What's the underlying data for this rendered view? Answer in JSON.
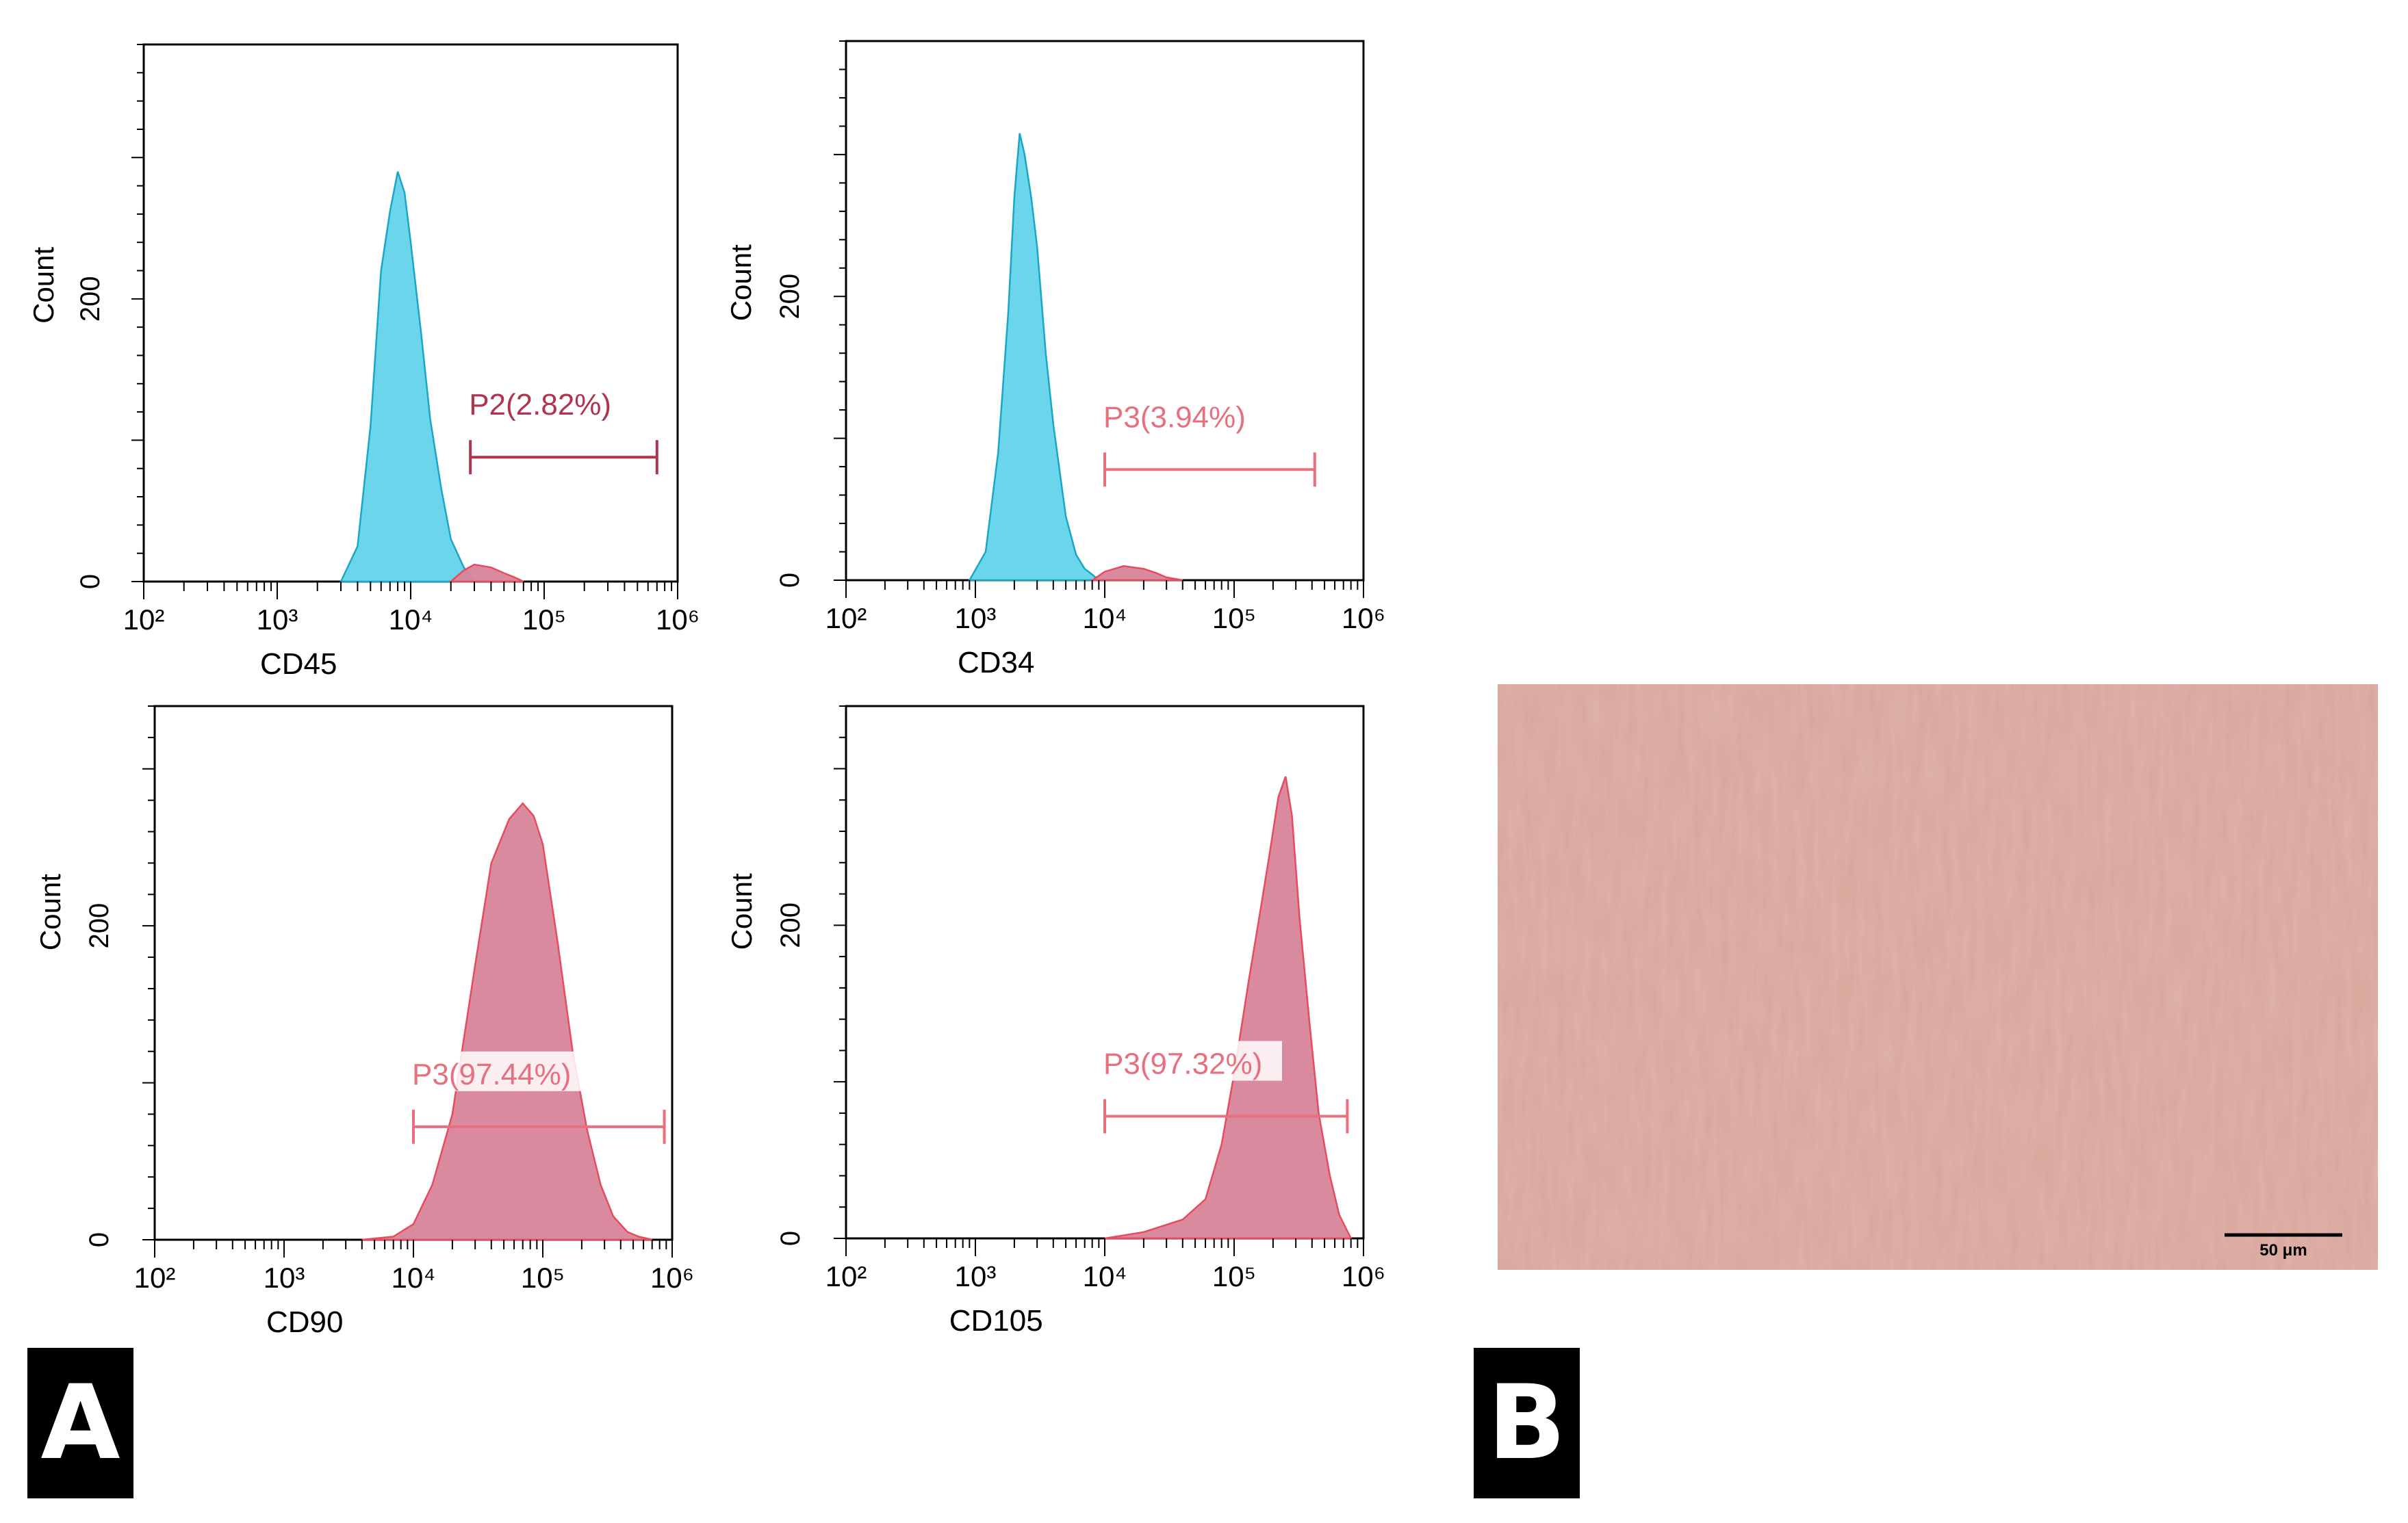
{
  "chart_data": [
    {
      "type": "area",
      "xlabel": "CD45",
      "ylabel": "Count",
      "x_scale": "log",
      "xlim": [
        100,
        1000000
      ],
      "ylim": [
        0,
        380
      ],
      "x_tick_labels": [
        "10²",
        "10³",
        "10⁴",
        "10⁵",
        "10⁶"
      ],
      "y_tick_labels": [
        "0",
        "200"
      ],
      "y_ticks": [
        0,
        200
      ],
      "series": [
        {
          "color": "#5bcfe8",
          "x": [
            3000,
            4000,
            5000,
            6000,
            7000,
            8000,
            9000,
            10000,
            12000,
            14000,
            17000,
            20000,
            25000,
            30000
          ],
          "values": [
            0,
            25,
            110,
            220,
            262,
            290,
            275,
            240,
            175,
            115,
            65,
            30,
            10,
            0
          ]
        },
        {
          "color": "#e8707e",
          "x": [
            20000,
            25000,
            30000,
            40000,
            50000,
            60000,
            70000
          ],
          "values": [
            0,
            8,
            12,
            10,
            6,
            3,
            0
          ]
        }
      ],
      "gate": {
        "label": "P2(2.82%)",
        "color": "#b0344e",
        "x_start": 28000,
        "x_end": 700000,
        "y": 88
      }
    },
    {
      "type": "area",
      "xlabel": "CD34",
      "ylabel": "Count",
      "x_scale": "log",
      "xlim": [
        100,
        1000000
      ],
      "ylim": [
        0,
        380
      ],
      "x_tick_labels": [
        "10²",
        "10³",
        "10⁴",
        "10⁵",
        "10⁶"
      ],
      "y_tick_labels": [
        "0",
        "200"
      ],
      "y_ticks": [
        0,
        200
      ],
      "series": [
        {
          "color": "#5bcfe8",
          "x": [
            900,
            1200,
            1500,
            1800,
            2000,
            2200,
            2400,
            2700,
            3000,
            3500,
            4000,
            5000,
            6000,
            7000,
            8000,
            9000
          ],
          "values": [
            0,
            20,
            90,
            190,
            270,
            315,
            300,
            270,
            235,
            160,
            110,
            45,
            18,
            8,
            4,
            0
          ]
        },
        {
          "color": "#e8707e",
          "x": [
            8000,
            10000,
            14000,
            20000,
            25000,
            30000,
            40000
          ],
          "values": [
            0,
            6,
            10,
            8,
            5,
            2,
            0
          ]
        }
      ],
      "gate": {
        "label": "P3(3.94%)",
        "color": "#e8707e",
        "x_start": 10000,
        "x_end": 420000,
        "y": 78
      }
    },
    {
      "type": "area",
      "xlabel": "CD90",
      "ylabel": "Count",
      "x_scale": "log",
      "xlim": [
        100,
        1000000
      ],
      "ylim": [
        0,
        340
      ],
      "x_tick_labels": [
        "10²",
        "10³",
        "10⁴",
        "10⁵",
        "10⁶"
      ],
      "y_tick_labels": [
        "0",
        "200"
      ],
      "y_ticks": [
        0,
        200
      ],
      "series": [
        {
          "color": "#e8707e",
          "x": [
            4000,
            7000,
            10000,
            14000,
            20000,
            30000,
            40000,
            55000,
            70000,
            85000,
            100000,
            130000,
            170000,
            220000,
            280000,
            350000,
            450000,
            550000,
            700000
          ],
          "values": [
            0,
            2,
            10,
            35,
            80,
            175,
            240,
            268,
            278,
            270,
            252,
            190,
            120,
            70,
            35,
            15,
            5,
            2,
            0
          ]
        }
      ],
      "gate": {
        "label": "P3(97.44%)",
        "color": "#e8707e",
        "x_start": 10000,
        "x_end": 870000,
        "y": 72
      }
    },
    {
      "type": "area",
      "xlabel": "CD105",
      "ylabel": "Count",
      "x_scale": "log",
      "xlim": [
        100,
        1000000
      ],
      "ylim": [
        0,
        340
      ],
      "x_tick_labels": [
        "10²",
        "10³",
        "10⁴",
        "10⁵",
        "10⁶"
      ],
      "y_tick_labels": [
        "0",
        "200"
      ],
      "y_ticks": [
        0,
        200
      ],
      "series": [
        {
          "color": "#e8707e",
          "x": [
            10000,
            20000,
            40000,
            60000,
            80000,
            100000,
            130000,
            160000,
            190000,
            220000,
            250000,
            280000,
            320000,
            380000,
            450000,
            550000,
            650000,
            800000
          ],
          "values": [
            0,
            4,
            12,
            25,
            60,
            105,
            165,
            210,
            248,
            282,
            295,
            270,
            205,
            140,
            80,
            40,
            15,
            0
          ]
        }
      ],
      "gate": {
        "label": "P3(97.32%)",
        "color": "#e8707e",
        "x_start": 10000,
        "x_end": 750000,
        "y": 78
      }
    }
  ],
  "panels": {
    "a_label": "A",
    "b_label": "B",
    "scalebar_text": "50 μm"
  }
}
